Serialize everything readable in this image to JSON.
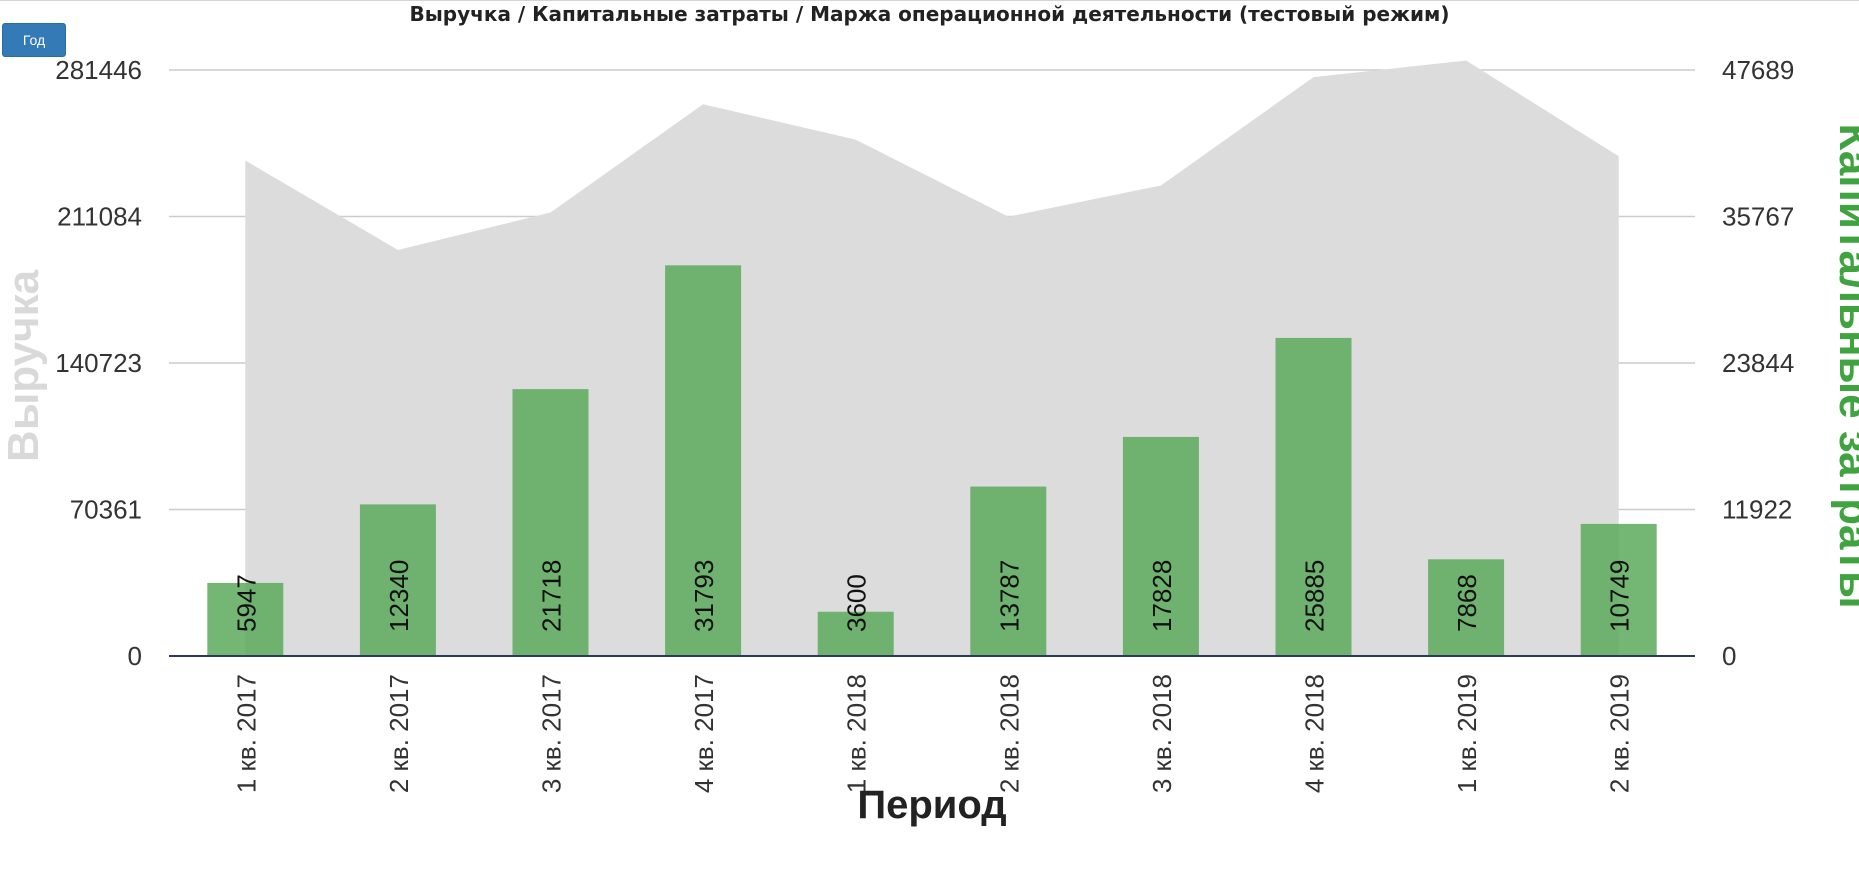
{
  "controls": {
    "period_button_label": "Год"
  },
  "chart_data": {
    "type": "bar",
    "title": "Выручка / Капитальные затраты / Маржа операционной деятельности (тестовый режим)",
    "xlabel": "Период",
    "ylabel": "Выручка",
    "y2label": "Капитальные затраты",
    "categories": [
      "1 кв. 2017",
      "2 кв. 2017",
      "3 кв. 2017",
      "4 кв. 2017",
      "1 кв. 2018",
      "2 кв. 2018",
      "3 кв. 2018",
      "4 кв. 2018",
      "1 кв. 2019",
      "2 кв. 2019"
    ],
    "y_ticks": [
      "0",
      "70361",
      "140723",
      "211084",
      "281446"
    ],
    "y2_ticks": [
      "0",
      "11922",
      "23844",
      "35767",
      "47689"
    ],
    "ylim": [
      0,
      281446
    ],
    "y2lim": [
      0,
      47689
    ],
    "grid": true,
    "series": [
      {
        "type": "area",
        "axis": "left",
        "color": "#dcdcdc",
        "values": [
          238000,
          195000,
          213000,
          265000,
          248000,
          211000,
          226000,
          278000,
          286000,
          240000
        ]
      },
      {
        "type": "bar",
        "axis": "right",
        "color": "#5ca95c",
        "values": [
          5947,
          12340,
          21718,
          31793,
          3600,
          13787,
          17828,
          25885,
          7868,
          10749
        ],
        "data_labels": [
          "5947",
          "12340",
          "21718",
          "31793",
          "3600",
          "13787",
          "17828",
          "25885",
          "7868",
          "10749"
        ]
      }
    ]
  }
}
